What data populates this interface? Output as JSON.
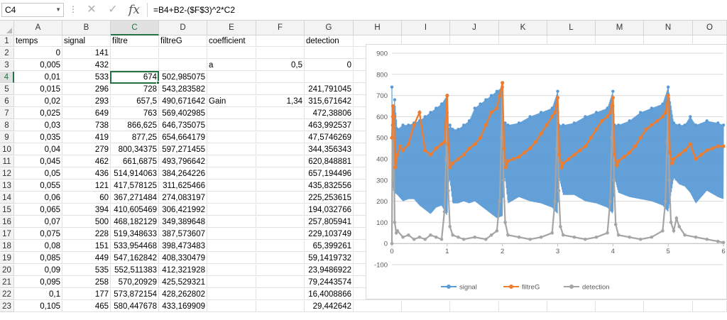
{
  "formula_bar": {
    "name_box": "C4",
    "formula": "=B4+B2-($F$3)^2*C2",
    "cancel_icon": "close-icon",
    "enter_icon": "check-icon",
    "fx_label": "fx"
  },
  "columns": [
    "A",
    "B",
    "C",
    "D",
    "E",
    "F",
    "G",
    "H",
    "I",
    "J",
    "K",
    "L",
    "M",
    "N",
    "O"
  ],
  "rows": [
    {
      "n": "1",
      "A": "temps",
      "B": "signal",
      "C": "filtre",
      "D": "filtreG",
      "E": "coefficient",
      "F": "",
      "G": "detection"
    },
    {
      "n": "2",
      "A": "0",
      "B": "141",
      "C": "",
      "D": "",
      "E": "",
      "F": "",
      "G": ""
    },
    {
      "n": "3",
      "A": "0,005",
      "B": "432",
      "C": "",
      "D": "",
      "E": "a",
      "F": "0,5",
      "G": "0"
    },
    {
      "n": "4",
      "A": "0,01",
      "B": "533",
      "C": "674",
      "D": "502,985075",
      "E": "",
      "F": "",
      "G": ""
    },
    {
      "n": "5",
      "A": "0,015",
      "B": "296",
      "C": "728",
      "D": "543,283582",
      "E": "",
      "F": "",
      "G": "241,791045"
    },
    {
      "n": "6",
      "A": "0,02",
      "B": "293",
      "C": "657,5",
      "D": "490,671642",
      "E": "Gain",
      "F": "1,34",
      "G": "315,671642"
    },
    {
      "n": "7",
      "A": "0,025",
      "B": "649",
      "C": "763",
      "D": "569,402985",
      "E": "",
      "F": "",
      "G": "472,38806"
    },
    {
      "n": "8",
      "A": "0,03",
      "B": "738",
      "C": "866,625",
      "D": "646,735075",
      "E": "",
      "F": "",
      "G": "463,992537"
    },
    {
      "n": "9",
      "A": "0,035",
      "B": "419",
      "C": "877,25",
      "D": "654,664179",
      "E": "",
      "F": "",
      "G": "47,5746269"
    },
    {
      "n": "10",
      "A": "0,04",
      "B": "279",
      "C": "800,34375",
      "D": "597,271455",
      "E": "",
      "F": "",
      "G": "344,356343"
    },
    {
      "n": "11",
      "A": "0,045",
      "B": "462",
      "C": "661,6875",
      "D": "493,796642",
      "E": "",
      "F": "",
      "G": "620,848881"
    },
    {
      "n": "12",
      "A": "0,05",
      "B": "436",
      "C": "514,914063",
      "D": "384,264226",
      "E": "",
      "F": "",
      "G": "657,194496"
    },
    {
      "n": "13",
      "A": "0,055",
      "B": "121",
      "C": "417,578125",
      "D": "311,625466",
      "E": "",
      "F": "",
      "G": "435,832556"
    },
    {
      "n": "14",
      "A": "0,06",
      "B": "60",
      "C": "367,271484",
      "D": "274,083197",
      "E": "",
      "F": "",
      "G": "225,253615"
    },
    {
      "n": "15",
      "A": "0,065",
      "B": "394",
      "C": "410,605469",
      "D": "306,421992",
      "E": "",
      "F": "",
      "G": "194,032766"
    },
    {
      "n": "16",
      "A": "0,07",
      "B": "500",
      "C": "468,182129",
      "D": "349,389648",
      "E": "",
      "F": "",
      "G": "257,805941"
    },
    {
      "n": "17",
      "A": "0,075",
      "B": "228",
      "C": "519,348633",
      "D": "387,573607",
      "E": "",
      "F": "",
      "G": "229,103749"
    },
    {
      "n": "18",
      "A": "0,08",
      "B": "151",
      "C": "533,954468",
      "D": "398,473483",
      "E": "",
      "F": "",
      "G": "65,399261"
    },
    {
      "n": "19",
      "A": "0,085",
      "B": "449",
      "C": "547,162842",
      "D": "408,330479",
      "E": "",
      "F": "",
      "G": "59,1419732"
    },
    {
      "n": "20",
      "A": "0,09",
      "B": "535",
      "C": "552,511383",
      "D": "412,321928",
      "E": "",
      "F": "",
      "G": "23,9486922"
    },
    {
      "n": "21",
      "A": "0,095",
      "B": "258",
      "C": "570,20929",
      "D": "425,529321",
      "E": "",
      "F": "",
      "G": "79,2443574"
    },
    {
      "n": "22",
      "A": "0,1",
      "B": "177",
      "C": "573,872154",
      "D": "428,262802",
      "E": "",
      "F": "",
      "G": "16,4008866"
    },
    {
      "n": "23",
      "A": "0,105",
      "B": "465",
      "C": "580,447678",
      "D": "433,169909",
      "E": "",
      "F": "",
      "G": "29,442642"
    }
  ],
  "selection": {
    "cell": "C4",
    "column": "C",
    "row": "4"
  },
  "colors": {
    "signal": "#5b9bd5",
    "filtreG": "#ed7d31",
    "detection": "#a5a5a5",
    "selection": "#217346"
  },
  "chart_data": {
    "type": "line",
    "title": "",
    "xlabel": "",
    "ylabel": "",
    "xlim": [
      0,
      6
    ],
    "ylim": [
      -100,
      900
    ],
    "x_ticks": [
      "0",
      "1",
      "2",
      "3",
      "4",
      "5",
      "6"
    ],
    "y_ticks": [
      "-100",
      "0",
      "100",
      "200",
      "300",
      "400",
      "500",
      "600",
      "700",
      "800",
      "900"
    ],
    "grid": "horizontal",
    "legend_position": "bottom",
    "series": [
      {
        "name": "signal",
        "color": "#5b9bd5",
        "x": [
          0,
          0.01,
          0.02,
          0.03,
          0.05,
          0.1,
          0.2,
          0.3,
          0.4,
          0.5,
          0.6,
          0.7,
          0.8,
          0.9,
          1.0,
          1.02,
          1.05,
          1.1,
          1.2,
          1.3,
          1.4,
          1.5,
          1.6,
          1.7,
          1.8,
          1.9,
          2.0,
          2.02,
          2.05,
          2.1,
          2.3,
          2.5,
          2.7,
          2.9,
          3.0,
          3.02,
          3.1,
          3.3,
          3.5,
          3.7,
          3.9,
          4.0,
          4.03,
          4.1,
          4.3,
          4.5,
          4.7,
          4.9,
          5.0,
          5.1,
          5.2,
          5.3,
          5.4,
          5.5,
          5.7,
          5.9,
          6.0
        ],
        "lo": [
          140,
          280,
          260,
          250,
          240,
          230,
          200,
          210,
          210,
          180,
          160,
          140,
          170,
          180,
          130,
          280,
          300,
          190,
          190,
          200,
          190,
          200,
          180,
          160,
          140,
          120,
          130,
          300,
          310,
          190,
          220,
          200,
          190,
          170,
          140,
          320,
          230,
          230,
          200,
          190,
          170,
          140,
          310,
          240,
          220,
          210,
          200,
          180,
          150,
          310,
          280,
          270,
          240,
          190,
          250,
          220,
          210
        ],
        "hi": [
          740,
          560,
          600,
          620,
          680,
          540,
          560,
          560,
          570,
          580,
          600,
          620,
          640,
          660,
          700,
          540,
          560,
          540,
          540,
          560,
          580,
          640,
          660,
          680,
          700,
          720,
          740,
          560,
          570,
          560,
          570,
          600,
          620,
          640,
          720,
          560,
          560,
          570,
          600,
          620,
          640,
          720,
          560,
          560,
          580,
          620,
          640,
          660,
          740,
          570,
          560,
          560,
          600,
          560,
          580,
          570,
          560
        ]
      },
      {
        "name": "filtreG",
        "color": "#ed7d31",
        "x": [
          0,
          0.02,
          0.04,
          0.06,
          0.1,
          0.15,
          0.2,
          0.3,
          0.4,
          0.5,
          0.6,
          0.7,
          0.8,
          0.9,
          0.95,
          1.0,
          1.02,
          1.05,
          1.1,
          1.2,
          1.3,
          1.4,
          1.5,
          1.6,
          1.7,
          1.8,
          1.9,
          1.95,
          2.0,
          2.03,
          2.06,
          2.1,
          2.2,
          2.3,
          2.4,
          2.5,
          2.6,
          2.7,
          2.8,
          2.9,
          2.95,
          3.0,
          3.03,
          3.07,
          3.1,
          3.2,
          3.3,
          3.4,
          3.5,
          3.6,
          3.7,
          3.8,
          3.9,
          3.95,
          4.0,
          4.03,
          4.07,
          4.1,
          4.2,
          4.3,
          4.4,
          4.5,
          4.6,
          4.7,
          4.8,
          4.9,
          4.95,
          5.0,
          5.03,
          5.07,
          5.1,
          5.2,
          5.3,
          5.4,
          5.5,
          5.6,
          5.7,
          5.8,
          5.9,
          6.0
        ],
        "y": [
          500,
          650,
          600,
          360,
          420,
          460,
          440,
          470,
          560,
          620,
          440,
          420,
          450,
          470,
          480,
          700,
          470,
          360,
          380,
          400,
          420,
          450,
          470,
          500,
          560,
          620,
          640,
          700,
          760,
          450,
          360,
          390,
          400,
          410,
          430,
          450,
          480,
          520,
          560,
          600,
          620,
          690,
          420,
          360,
          380,
          400,
          420,
          440,
          460,
          500,
          540,
          580,
          600,
          620,
          690,
          420,
          370,
          390,
          410,
          430,
          460,
          500,
          540,
          560,
          580,
          600,
          620,
          700,
          430,
          380,
          400,
          420,
          440,
          470,
          400,
          420,
          440,
          450,
          460,
          460
        ]
      },
      {
        "name": "detection",
        "color": "#a5a5a5",
        "x": [
          0,
          0.01,
          0.02,
          0.03,
          0.05,
          0.08,
          0.1,
          0.2,
          0.3,
          0.4,
          0.5,
          0.6,
          0.7,
          0.8,
          0.9,
          0.95,
          0.98,
          1.0,
          1.02,
          1.05,
          1.1,
          1.2,
          1.3,
          1.5,
          1.7,
          1.8,
          1.9,
          1.95,
          1.98,
          2.0,
          2.02,
          2.05,
          2.1,
          2.3,
          2.5,
          2.7,
          2.9,
          2.95,
          2.98,
          3.0,
          3.02,
          3.05,
          3.1,
          3.3,
          3.5,
          3.7,
          3.9,
          3.95,
          3.98,
          4.0,
          4.02,
          4.05,
          4.1,
          4.3,
          4.5,
          4.7,
          4.9,
          4.95,
          4.98,
          5.0,
          5.02,
          5.05,
          5.1,
          5.15,
          5.2,
          5.3,
          5.5,
          5.7,
          5.9,
          6.0
        ],
        "y": [
          0,
          600,
          300,
          650,
          100,
          50,
          60,
          30,
          40,
          20,
          30,
          20,
          40,
          30,
          20,
          150,
          400,
          620,
          250,
          80,
          40,
          30,
          20,
          30,
          20,
          40,
          60,
          200,
          500,
          740,
          300,
          100,
          40,
          30,
          20,
          30,
          50,
          200,
          450,
          620,
          250,
          80,
          40,
          30,
          20,
          30,
          50,
          200,
          500,
          650,
          300,
          90,
          40,
          30,
          20,
          30,
          60,
          200,
          480,
          690,
          300,
          100,
          60,
          120,
          80,
          40,
          30,
          20,
          10,
          5
        ]
      }
    ]
  }
}
